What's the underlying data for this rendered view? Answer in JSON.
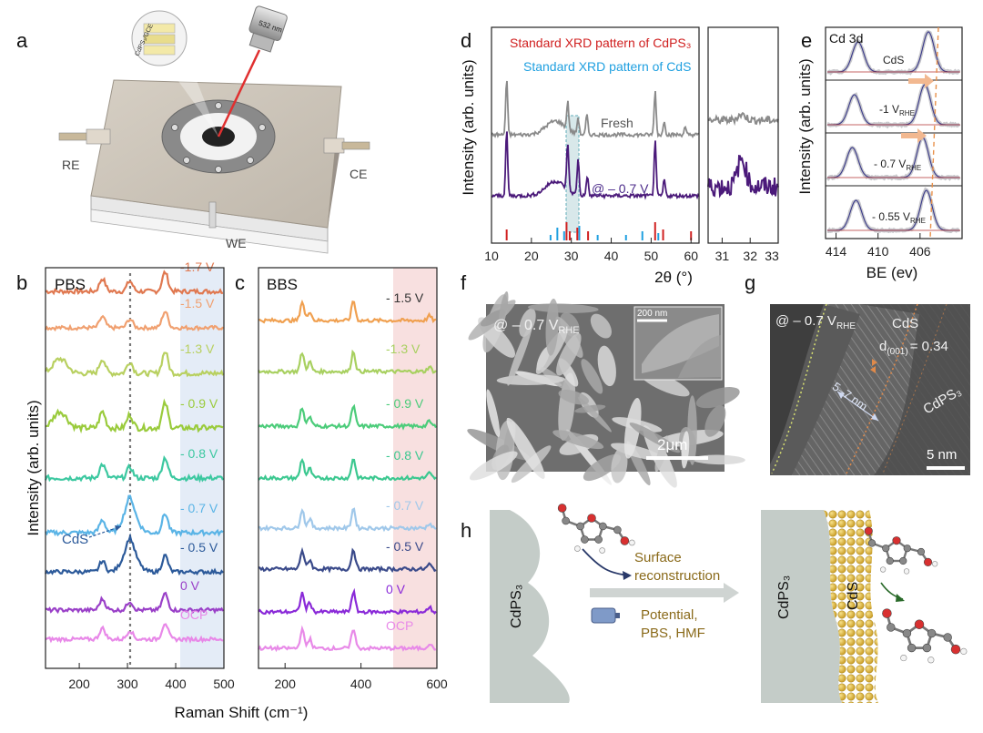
{
  "panel_letters": {
    "a": "a",
    "b": "b",
    "c": "c",
    "d": "d",
    "e": "e",
    "f": "f",
    "g": "g",
    "h": "h"
  },
  "panel_a": {
    "laser_label": "532 nm",
    "sample_label": "CdPS₃/GCE",
    "re": "RE",
    "ce": "CE",
    "we": "WE"
  },
  "panel_b": {
    "title": "PBS",
    "ylabel": "Intensity (arb. units)",
    "cds_label": "CdS",
    "labels": [
      "-1.7 V",
      "-1.5 V",
      "-1.3 V",
      "- 0.9 V",
      "- 0.8 V",
      "- 0.7 V",
      "- 0.5 V",
      "0 V",
      "OCP"
    ],
    "label_colors": [
      "#e07850",
      "#f0a070",
      "#b8d060",
      "#9acb3c",
      "#3cc8a0",
      "#5ab4e6",
      "#2c5a9a",
      "#9a40c8",
      "#e888e8"
    ],
    "xticks": [
      "200",
      "300",
      "400",
      "500"
    ]
  },
  "panel_c": {
    "title": "BBS",
    "labels": [
      "- 1.5 V",
      "-1.3 V",
      "- 0.9 V",
      "- 0.8 V",
      "- 0.7 V",
      "- 0.5 V",
      "0 V",
      "OCP"
    ],
    "label_colors": [
      "#333333",
      "#a8d060",
      "#4ccc7a",
      "#3cc890",
      "#a0c8ea",
      "#3a4a8a",
      "#8a2ad8",
      "#e88ae8"
    ],
    "xticks": [
      "200",
      "400",
      "600"
    ]
  },
  "xlabel_bc": "Raman Shift (cm⁻¹)",
  "panel_d": {
    "legend_cdps3": "Standard XRD pattern of CdPS₃",
    "legend_cds": "Standard XRD pattern of CdS",
    "fresh": "Fresh",
    "pot": "@ – 0.7 V",
    "ylabel": "Intensity (arb. units)",
    "xlabel": "2θ (°)",
    "xticks": [
      "10",
      "20",
      "30",
      "40",
      "50",
      "60"
    ],
    "zoom_xticks": [
      "31",
      "32",
      "33"
    ],
    "cdps3_color": "#d02020",
    "cds_color": "#20a0e0"
  },
  "panel_e": {
    "title": "Cd 3d",
    "ylabel": "Intensity (arb. units)",
    "xlabel": "BE (ev)",
    "labels": [
      "CdS",
      "-1 V",
      "- 0.7 V",
      "- 0.55 V"
    ],
    "sub": "RHE",
    "xticks": [
      "414",
      "410",
      "406"
    ]
  },
  "panel_f": {
    "label": "@ – 0.7 V",
    "sub": "RHE",
    "inset_scale": "200 nm",
    "scale": "2μm"
  },
  "panel_g": {
    "label": "@ – 0.7 V",
    "sub": "RHE",
    "cds": "CdS",
    "cdps3": "CdPS₃",
    "d": "d",
    "dsub": "(001)",
    "dval": "= 0.34",
    "thick": "5–7 nm",
    "scale": "5 nm"
  },
  "panel_h": {
    "left_label": "CdPS₃",
    "right_label1": "CdPS₃",
    "right_label2": "CdS",
    "text1": "Surface",
    "text2": "reconstruction",
    "text3": "Potential,",
    "text4": "PBS, HMF"
  }
}
